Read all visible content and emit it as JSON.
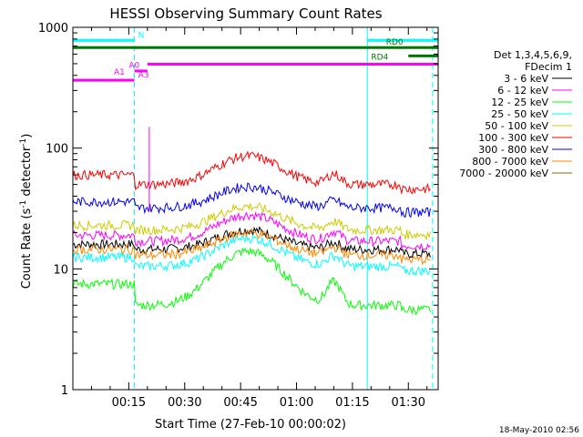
{
  "chart_data": {
    "type": "line",
    "title": "HESSI Observing Summary Count Rates",
    "xlabel": "Start Time (27-Feb-10 00:00:02)",
    "ylabel_main": "Count Rate (s",
    "ylabel_sup1": "-1",
    "ylabel_mid": " detector",
    "ylabel_sup2": "-1",
    "ylabel_end": ")",
    "yscale": "log",
    "xlim_min": [
      0,
      98
    ],
    "ylim": [
      1,
      1000
    ],
    "x_ticks": [
      {
        "v": 15,
        "label": "00:15"
      },
      {
        "v": 30,
        "label": "00:30"
      },
      {
        "v": 45,
        "label": "00:45"
      },
      {
        "v": 60,
        "label": "01:00"
      },
      {
        "v": 75,
        "label": "01:15"
      },
      {
        "v": 90,
        "label": "01:30"
      }
    ],
    "y_ticks": [
      {
        "v": 1,
        "label": "1"
      },
      {
        "v": 10,
        "label": "10"
      },
      {
        "v": 100,
        "label": "100"
      },
      {
        "v": 1000,
        "label": "1000"
      }
    ],
    "legend_header": [
      "Det 1,3,4,5,6,9,",
      "FDecim 1"
    ],
    "series": [
      {
        "name": "3 - 6 keV",
        "color": "#000000",
        "base": 14.5,
        "peak": 21,
        "early": 16
      },
      {
        "name": "6 - 12 keV",
        "color": "#ff00ff",
        "base": 17,
        "peak": 28,
        "early": 19
      },
      {
        "name": "12 - 25 keV",
        "color": "#00ff00",
        "base": 5,
        "peak": 14,
        "early": 7.5
      },
      {
        "name": "25 - 50 keV",
        "color": "#00ffff",
        "base": 10.5,
        "peak": 18,
        "early": 12.5
      },
      {
        "name": "50 - 100 keV",
        "color": "#cccc00",
        "base": 21,
        "peak": 33,
        "early": 23
      },
      {
        "name": "100 - 300 keV",
        "color": "#ff0000",
        "base": 50,
        "peak": 86,
        "early": 60
      },
      {
        "name": "300 - 800 keV",
        "color": "#0000ff",
        "base": 32,
        "peak": 48,
        "early": 36
      },
      {
        "name": "800 - 7000 keV",
        "color": "#ff8800",
        "base": 13,
        "peak": 20,
        "early": 14.5
      },
      {
        "name": "7000 - 20000 keV",
        "color": "#8b6914",
        "base": 0,
        "peak": 0,
        "early": 0
      }
    ],
    "bars": [
      {
        "label": "N",
        "color": "#00ffff",
        "x0": 0,
        "x1": 16.5,
        "y": 780,
        "label_x": 17.5,
        "label_side": "right"
      },
      {
        "label": "",
        "color": "#00ffff",
        "x0": 79,
        "x1": 98,
        "y": 780,
        "label_x": null,
        "label_side": "none"
      },
      {
        "label": "RD0",
        "color": "#007700",
        "x0": 0,
        "x1": 98,
        "y": 680,
        "label_x": 84,
        "label_side": "above_end"
      },
      {
        "label": "RD4",
        "color": "#007700",
        "x0": 90,
        "x1": 98,
        "y": 580,
        "label_x": 80,
        "label_side": "left"
      },
      {
        "label": "A0",
        "color": "#ff00ff",
        "x0": 20,
        "x1": 98,
        "y": 495,
        "label_x": 15,
        "label_side": "left"
      },
      {
        "label": "A1",
        "color": "#ff00ff",
        "x0": 16.5,
        "x1": 20,
        "y": 435,
        "label_x": 11,
        "label_side": "left"
      },
      {
        "label": "A3",
        "color": "#ff00ff",
        "x0": 0,
        "x1": 16.5,
        "y": 365,
        "label_x": 17.5,
        "label_side": "right"
      }
    ],
    "solid_vlines": [
      {
        "x": 0,
        "color": "#00ffff"
      },
      {
        "x": 79,
        "color": "#00ffff"
      }
    ],
    "dashed_vlines": [
      {
        "x": 16.5,
        "color": "#00ffff"
      },
      {
        "x": 96.5,
        "color": "#00ffff"
      }
    ],
    "spike": {
      "x": 20.5,
      "top": 150,
      "color": "#ff00ff"
    },
    "timestamp": "18-May-2010 02:56"
  }
}
